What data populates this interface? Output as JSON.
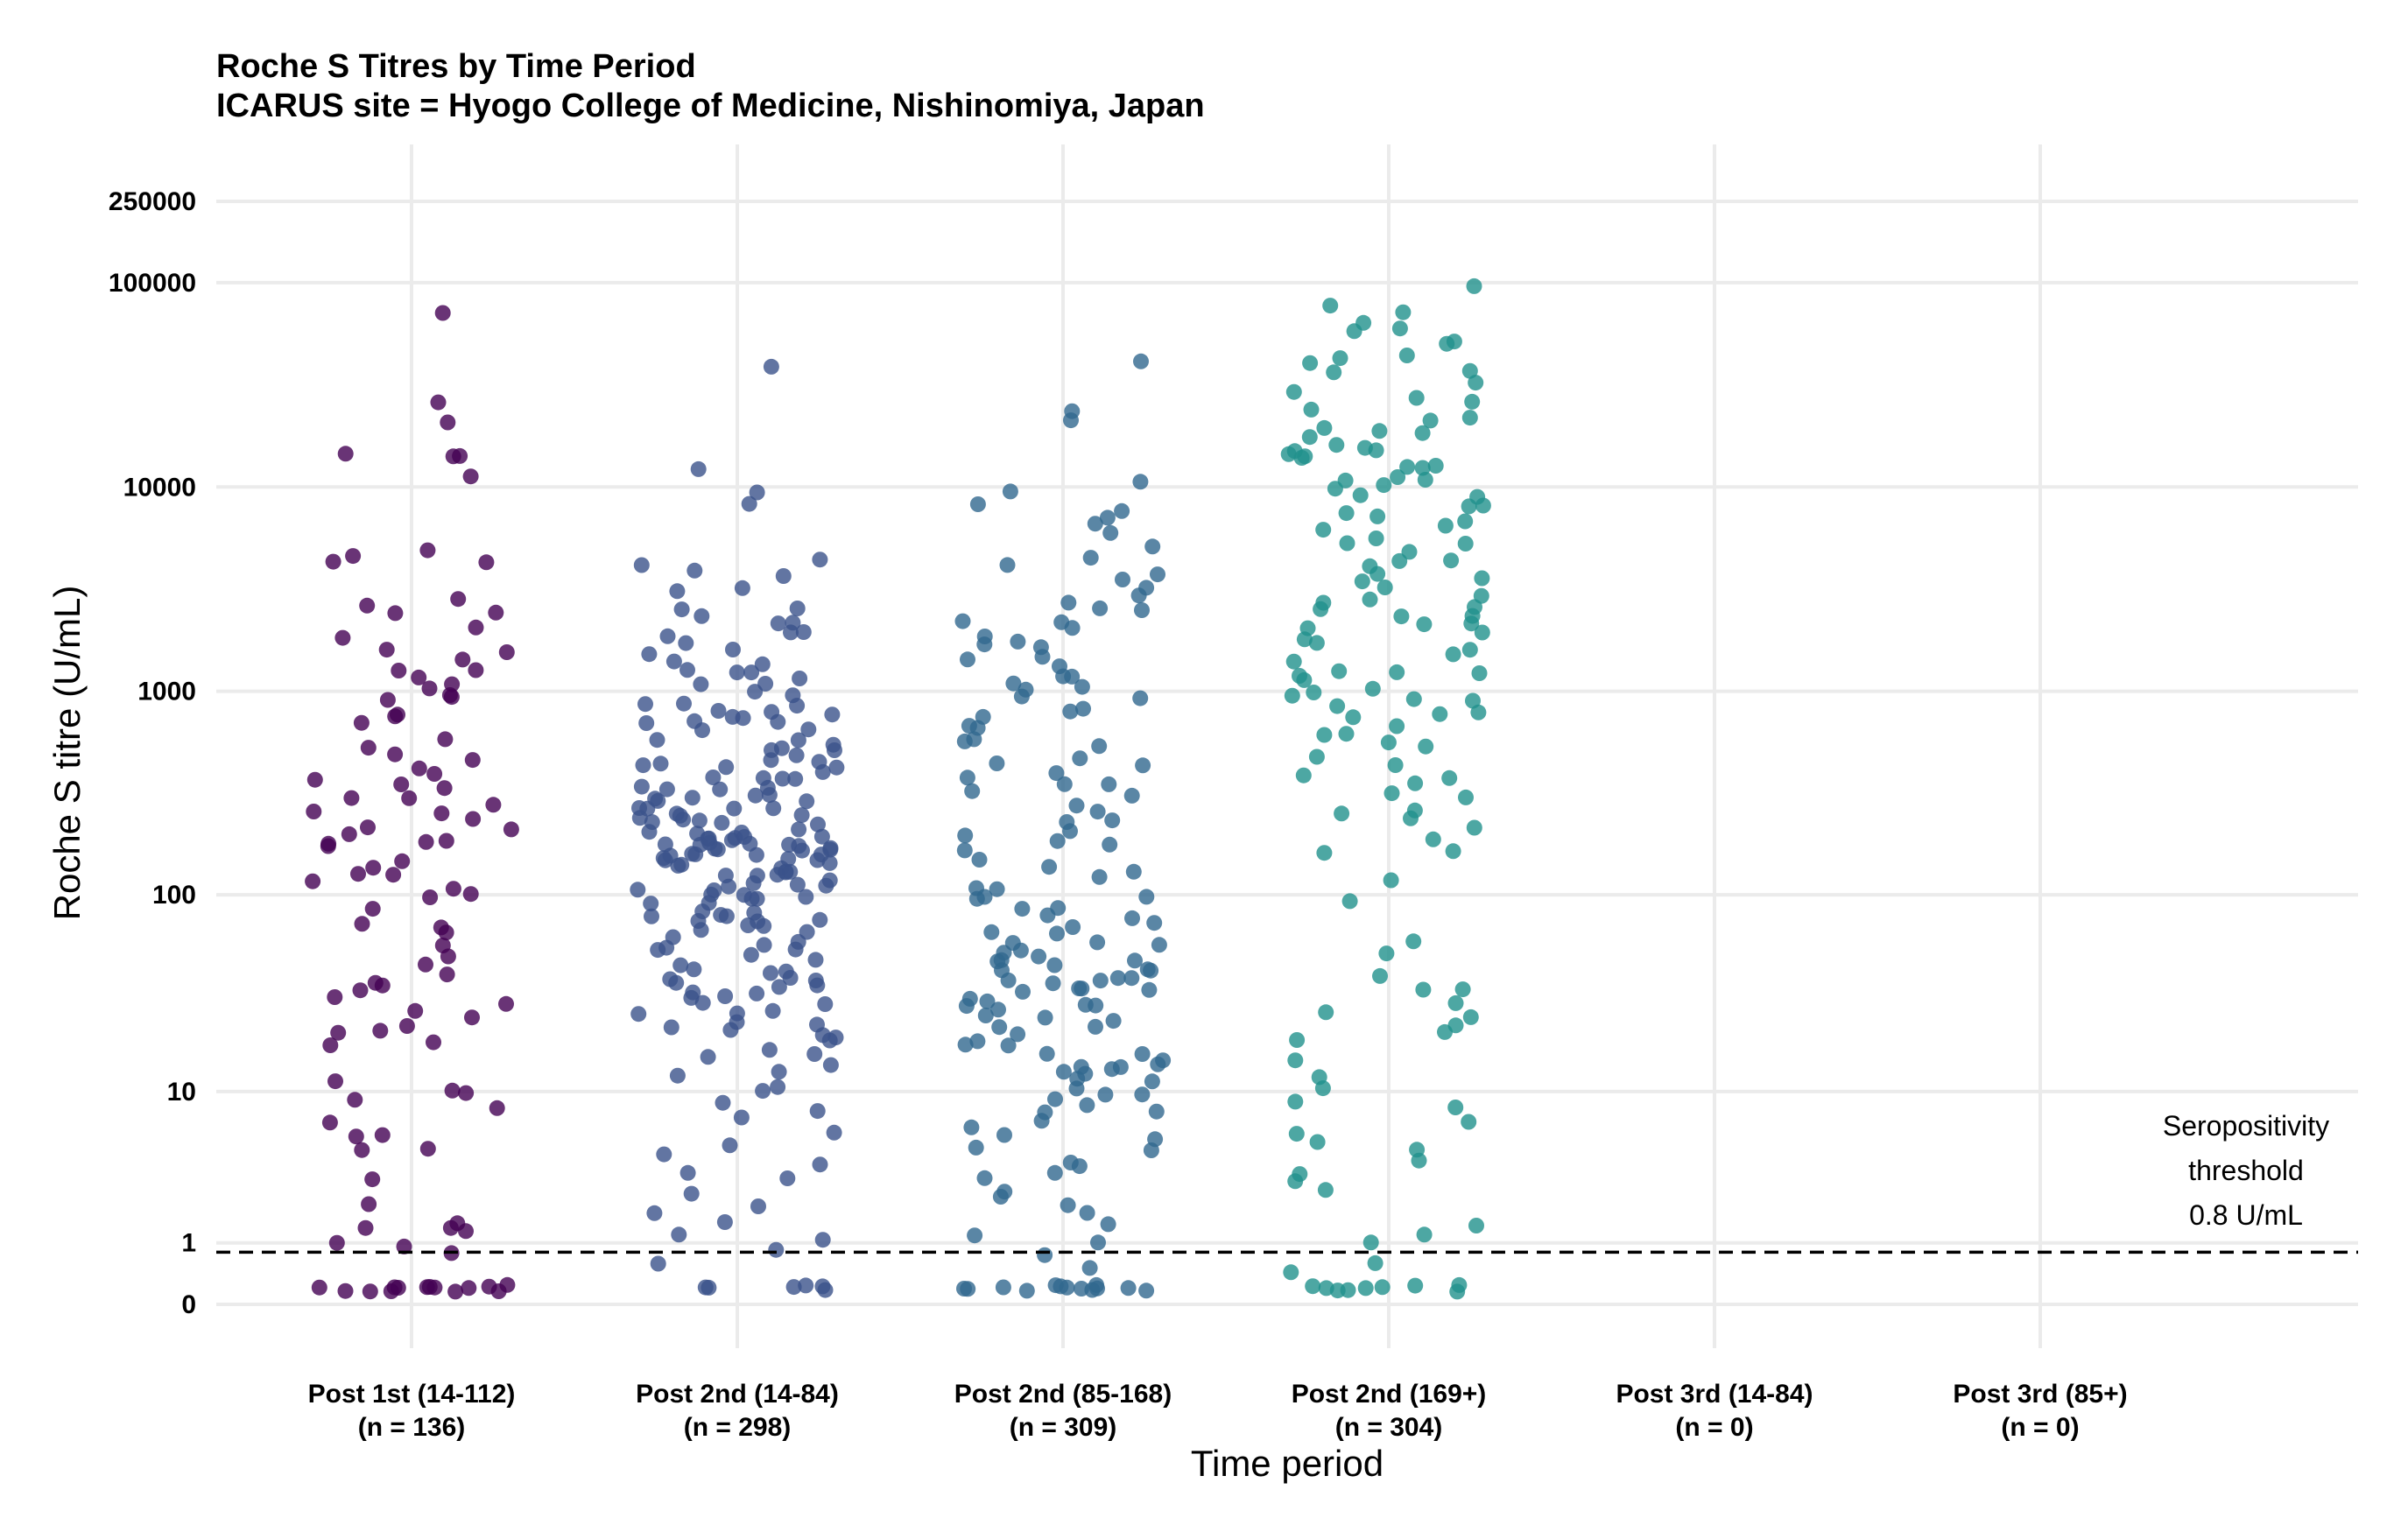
{
  "chart_data": {
    "type": "scatter",
    "title": "Roche S Titres by Time Period",
    "subtitle": "ICARUS site = Hyogo College of Medicine, Nishinomiya, Japan",
    "xlabel": "Time period",
    "ylabel": "Roche S titre (U/mL)",
    "y_scale": "log10(x+1)",
    "y_ticks": [
      0,
      1,
      10,
      100,
      1000,
      10000,
      100000,
      250000
    ],
    "y_tick_labels": [
      "0",
      "1",
      "10",
      "100",
      "1000",
      "10000",
      "100000",
      "250000"
    ],
    "grid": true,
    "legend": "none",
    "categories": [
      {
        "line1": "Post 1st (14-112)",
        "line2": "(n = 136)"
      },
      {
        "line1": "Post 2nd (14-84)",
        "line2": "(n = 298)"
      },
      {
        "line1": "Post 2nd (85-168)",
        "line2": "(n = 309)"
      },
      {
        "line1": "Post 2nd (169+)",
        "line2": "(n = 304)"
      },
      {
        "line1": "Post 3rd (14-84)",
        "line2": "(n = 0)"
      },
      {
        "line1": "Post 3rd (85+)",
        "line2": "(n = 0)"
      }
    ],
    "series": [
      {
        "color": "#440154",
        "values": [
          70000,
          27000,
          21000,
          15000,
          14500,
          14000,
          11000,
          4800,
          4700,
          4400,
          4300,
          2800,
          2600,
          2500,
          2400,
          2000,
          1800,
          1600,
          1550,
          1400,
          1300,
          1250,
          1200,
          1050,
          1000,
          950,
          920,
          900,
          780,
          740,
          680,
          560,
          520,
          480,
          460,
          430,
          400,
          370,
          350,
          330,
          310,
          300,
          280,
          260,
          250,
          240,
          220,
          210,
          200,
          190,
          185,
          180,
          175,
          150,
          140,
          130,
          125,
          115,
          110,
          105,
          100,
          82,
          72,
          70,
          65,
          58,
          48,
          44,
          40,
          37,
          35,
          33,
          31,
          29,
          27,
          24,
          22,
          21,
          20,
          18,
          17,
          11,
          10,
          10,
          9,
          8,
          7,
          6,
          5.5,
          5,
          4.8,
          3.2,
          2.1,
          1.5,
          1.4,
          1.3,
          1.2,
          1,
          0.9,
          0.8,
          0.2,
          0.2,
          0.2,
          0.2,
          0.2,
          0.2,
          0.2,
          0.2,
          0.2,
          0.2,
          0.2,
          0.2,
          0.2,
          0.2
        ]
      },
      {
        "color": "#3b528b",
        "values": [
          40000,
          12500,
          9500,
          8000,
          4500,
          4200,
          4000,
          3800,
          3300,
          3000,
          2600,
          2500,
          2400,
          2200,
          2100,
          2000,
          1900,
          1800,
          1700,
          1600,
          1500,
          1400,
          1350,
          1300,
          1250,
          1200,
          1150,
          1100,
          1050,
          1000,
          950,
          900,
          870,
          850,
          820,
          800,
          780,
          760,
          740,
          720,
          700,
          680,
          650,
          620,
          600,
          580,
          560,
          540,
          520,
          500,
          480,
          460,
          450,
          440,
          430,
          420,
          410,
          400,
          390,
          380,
          370,
          360,
          350,
          340,
          330,
          320,
          310,
          300,
          295,
          290,
          285,
          280,
          275,
          270,
          265,
          260,
          255,
          250,
          245,
          240,
          235,
          230,
          225,
          220,
          215,
          210,
          205,
          200,
          198,
          196,
          194,
          192,
          190,
          188,
          186,
          184,
          182,
          180,
          178,
          176,
          174,
          172,
          170,
          168,
          166,
          164,
          162,
          160,
          158,
          156,
          154,
          152,
          150,
          148,
          145,
          142,
          140,
          138,
          135,
          132,
          130,
          128,
          125,
          122,
          120,
          118,
          115,
          112,
          110,
          108,
          105,
          102,
          100,
          98,
          96,
          94,
          92,
          90,
          88,
          86,
          84,
          82,
          80,
          78,
          76,
          74,
          72,
          70,
          68,
          66,
          64,
          62,
          60,
          58,
          56,
          54,
          52,
          50,
          48,
          46,
          44,
          42,
          40,
          39,
          38,
          37,
          36,
          35,
          34,
          33,
          32,
          31,
          30,
          29,
          28,
          27,
          26,
          25,
          24,
          23,
          22,
          21,
          20,
          19,
          18,
          17,
          16,
          15,
          14,
          13,
          12,
          11,
          10,
          9,
          8,
          7,
          6,
          5,
          4.5,
          4,
          3.5,
          3,
          2.5,
          2,
          1.8,
          1.5,
          1.2,
          1,
          0.9,
          0.6,
          0.2,
          0.2,
          0.2,
          0.2,
          0.2,
          0.2
        ]
      },
      {
        "color": "#31688e",
        "values": [
          42000,
          24000,
          22000,
          10500,
          9200,
          8000,
          7500,
          7000,
          6500,
          6000,
          5000,
          4500,
          4000,
          3800,
          3500,
          3300,
          3000,
          2800,
          2600,
          2400,
          2200,
          2100,
          2000,
          1900,
          1800,
          1700,
          1600,
          1500,
          1400,
          1300,
          1200,
          1150,
          1100,
          1050,
          1000,
          950,
          900,
          850,
          800,
          750,
          700,
          650,
          600,
          560,
          520,
          480,
          450,
          420,
          400,
          380,
          360,
          340,
          320,
          300,
          280,
          260,
          240,
          220,
          200,
          190,
          180,
          170,
          160,
          150,
          140,
          130,
          120,
          110,
          105,
          100,
          96,
          92,
          88,
          84,
          80,
          76,
          72,
          68,
          65,
          62,
          60,
          58,
          56,
          54,
          52,
          50,
          48,
          46,
          45,
          44,
          43,
          42,
          41,
          40,
          39,
          38,
          37,
          36,
          35,
          34,
          33,
          32,
          31,
          30,
          29,
          28,
          27,
          26,
          25,
          24,
          23,
          22,
          21,
          20,
          19,
          18,
          17,
          16,
          15.5,
          15,
          14.5,
          14,
          13.5,
          13,
          12.5,
          12,
          11.5,
          11,
          10.5,
          10,
          9.5,
          9,
          8.5,
          8,
          7.5,
          7,
          6.5,
          6,
          5.5,
          5,
          4.5,
          4,
          3.7,
          3.4,
          3,
          2.7,
          2.4,
          2.1,
          1.8,
          1.5,
          1.2,
          1,
          0.8,
          0.5,
          0.2,
          0.2,
          0.2,
          0.2,
          0.2,
          0.2,
          0.2,
          0.2,
          0.2,
          0.2,
          0.2,
          0.2,
          0.2
        ]
      },
      {
        "color": "#21918c",
        "values": [
          95000,
          80000,
          70000,
          65000,
          60000,
          58000,
          52000,
          50000,
          45000,
          42000,
          40000,
          37000,
          35000,
          32000,
          30000,
          28000,
          26000,
          24000,
          22000,
          21000,
          20000,
          19000,
          18000,
          17000,
          16500,
          16000,
          15500,
          15000,
          14500,
          14000,
          13500,
          13000,
          12500,
          12000,
          11500,
          11000,
          10500,
          10000,
          9600,
          9200,
          8800,
          8400,
          8000,
          7600,
          7200,
          6800,
          6400,
          6000,
          5700,
          5400,
          5100,
          4800,
          4500,
          4200,
          4000,
          3800,
          3600,
          3400,
          3200,
          3000,
          2800,
          2700,
          2600,
          2500,
          2400,
          2300,
          2200,
          2100,
          2000,
          1900,
          1800,
          1700,
          1600,
          1500,
          1400,
          1300,
          1250,
          1200,
          1150,
          1100,
          1050,
          1000,
          960,
          920,
          880,
          840,
          800,
          760,
          720,
          680,
          640,
          600,
          560,
          520,
          480,
          440,
          400,
          370,
          340,
          310,
          290,
          270,
          250,
          230,
          210,
          190,
          170,
          160,
          120,
          95,
          60,
          50,
          38,
          35,
          33,
          28,
          26,
          25,
          22,
          20,
          18,
          15,
          12,
          10,
          9,
          8,
          7,
          6,
          5,
          4.5,
          4,
          3.5,
          3,
          2.5,
          1.5,
          1.2,
          1,
          0.6,
          0.4,
          0.2,
          0.2,
          0.2,
          0.2,
          0.2,
          0.2,
          0.2,
          0.2,
          0.2
        ]
      }
    ],
    "threshold": {
      "value": 0.8,
      "style": "dashed",
      "label_lines": [
        "Seropositivity",
        "threshold",
        "0.8 U/mL"
      ]
    }
  }
}
